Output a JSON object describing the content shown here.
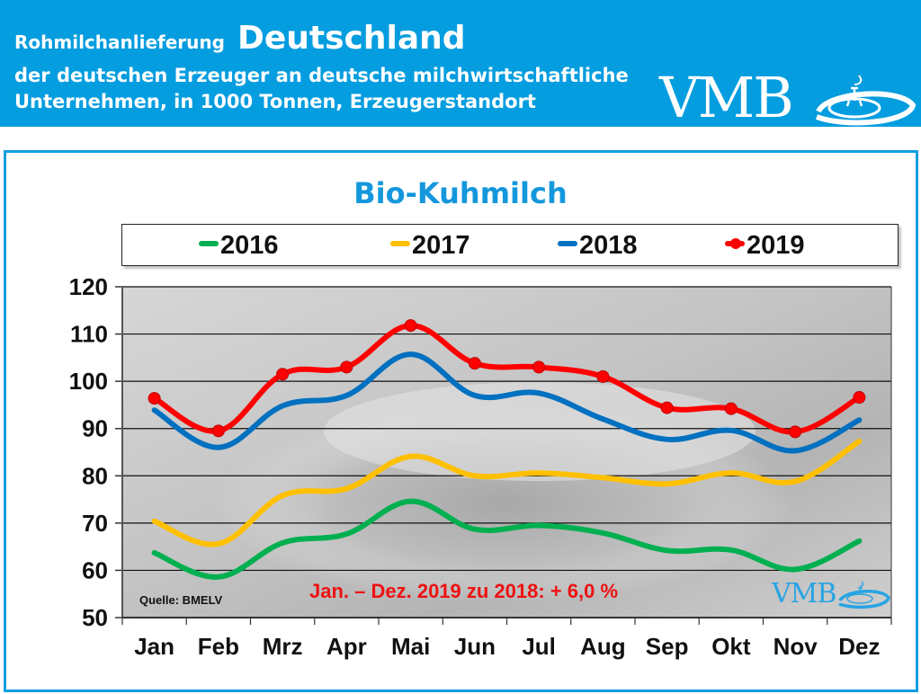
{
  "header": {
    "title_small": "Rohmilchanlieferung",
    "title_big": "Deutschland",
    "subtitle_line1": "der deutschen Erzeuger an deutsche milchwirtschaftliche",
    "subtitle_line2": "Unternehmen, in 1000 Tonnen, Erzeugerstandort",
    "logo": "VMB",
    "background_color": "#049ddf"
  },
  "watermark": {
    "logo": "VMB"
  },
  "note": "Jan. – Dez. 2019 zu 2018: + 6,0 %",
  "source": "Quelle: BMELV",
  "chart_data": {
    "type": "line",
    "title": "Bio-Kuhmilch",
    "xlabel": "",
    "ylabel": "",
    "categories": [
      "Jan",
      "Feb",
      "Mrz",
      "Apr",
      "Mai",
      "Jun",
      "Jul",
      "Aug",
      "Sep",
      "Okt",
      "Nov",
      "Dez"
    ],
    "ylim": [
      50,
      120
    ],
    "yticks": [
      50,
      60,
      70,
      80,
      90,
      100,
      110,
      120
    ],
    "grid": true,
    "legend_position": "top",
    "series": [
      {
        "name": "2016",
        "color": "#00b050",
        "markers": false,
        "values": [
          63.7,
          58.6,
          65.8,
          67.7,
          74.6,
          68.7,
          69.5,
          67.9,
          64.2,
          64.3,
          60.2,
          66.2
        ]
      },
      {
        "name": "2017",
        "color": "#ffc000",
        "markers": false,
        "values": [
          70.4,
          65.6,
          75.8,
          77.3,
          84.1,
          80.0,
          80.6,
          79.6,
          78.3,
          80.6,
          78.8,
          87.3
        ]
      },
      {
        "name": "2018",
        "color": "#0070c0",
        "markers": false,
        "values": [
          93.9,
          86.0,
          94.8,
          97.0,
          105.7,
          97.0,
          97.5,
          92.0,
          87.7,
          89.6,
          85.3,
          91.8
        ]
      },
      {
        "name": "2019",
        "color": "#ff0000",
        "markers": true,
        "values": [
          96.4,
          89.5,
          101.5,
          103.0,
          111.8,
          103.8,
          103.0,
          101.0,
          94.4,
          94.2,
          89.3,
          96.6
        ]
      }
    ]
  }
}
